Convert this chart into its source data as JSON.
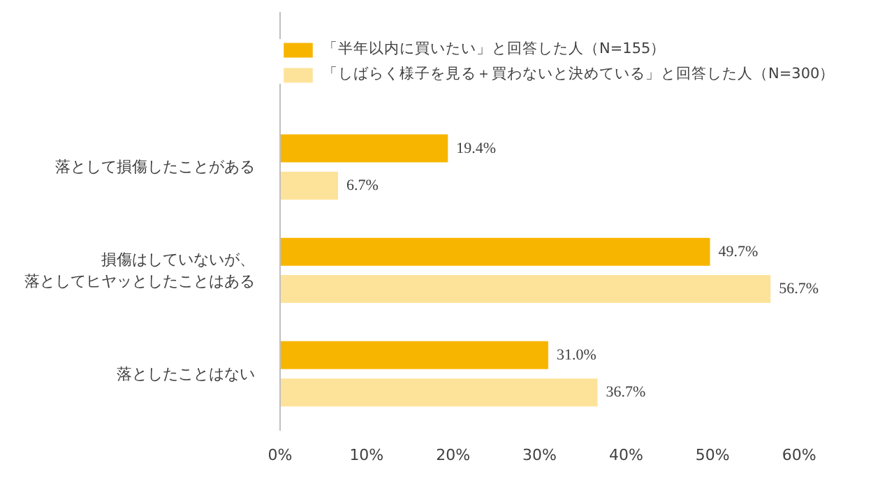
{
  "chart_data": {
    "type": "bar",
    "orientation": "horizontal",
    "categories": [
      "落として損傷したことがある",
      "損傷はしていないが、落としてヒヤッとしたことはある",
      "落としたことはない"
    ],
    "series": [
      {
        "name": "「半年以内に買いたい」と回答した人（N=155）",
        "color": "#f8b500",
        "values": [
          19.4,
          49.7,
          31.0
        ],
        "value_labels": [
          "19.4%",
          "49.7%",
          "31.0%"
        ]
      },
      {
        "name": "「しばらく様子を見る＋買わないと決めている」と回答した人（N=300）",
        "color": "#fde39a",
        "values": [
          6.7,
          56.7,
          36.7
        ],
        "value_labels": [
          "6.7%",
          "56.7%",
          "36.7%"
        ]
      }
    ],
    "xlim": [
      0,
      60
    ],
    "xticks": [
      {
        "value": 0,
        "label": "0%"
      },
      {
        "value": 10,
        "label": "10%"
      },
      {
        "value": 20,
        "label": "20%"
      },
      {
        "value": 30,
        "label": "30%"
      },
      {
        "value": 40,
        "label": "40%"
      },
      {
        "value": 50,
        "label": "50%"
      },
      {
        "value": 60,
        "label": "60%"
      }
    ],
    "grid": false,
    "legend": "top"
  }
}
